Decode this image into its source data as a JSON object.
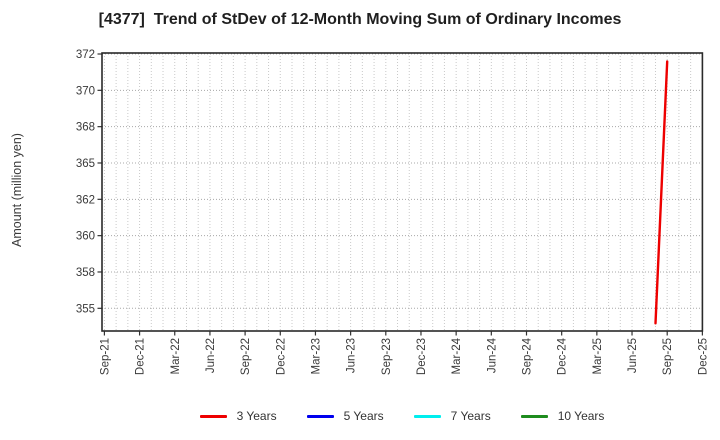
{
  "title": "[4377]  Trend of StDev of 12-Month Moving Sum of Ordinary Incomes",
  "y_axis": {
    "label": "Amount (million yen)",
    "ticks": [
      "372",
      "370",
      "368",
      "365",
      "362",
      "360",
      "358",
      "355"
    ]
  },
  "x_axis": {
    "ticks": [
      "Sep-21",
      "Dec-21",
      "Mar-22",
      "Jun-22",
      "Sep-22",
      "Dec-22",
      "Mar-23",
      "Jun-23",
      "Sep-23",
      "Dec-23",
      "Mar-24",
      "Jun-24",
      "Sep-24",
      "Dec-24",
      "Mar-25",
      "Jun-25",
      "Sep-25",
      "Dec-25"
    ]
  },
  "legend": [
    {
      "label": "3 Years",
      "color": "#ee0000"
    },
    {
      "label": "5 Years",
      "color": "#0000ee"
    },
    {
      "label": "7 Years",
      "color": "#00eeee"
    },
    {
      "label": "10 Years",
      "color": "#1e8c1e"
    }
  ],
  "chart_data": {
    "type": "line",
    "title": "[4377]  Trend of StDev of 12-Month Moving Sum of Ordinary Incomes",
    "xlabel": "",
    "ylabel": "Amount (million yen)",
    "x_tick_labels": [
      "Sep-21",
      "Dec-21",
      "Mar-22",
      "Jun-22",
      "Sep-22",
      "Dec-22",
      "Mar-23",
      "Jun-23",
      "Sep-23",
      "Dec-23",
      "Mar-24",
      "Jun-24",
      "Sep-24",
      "Dec-24",
      "Mar-25",
      "Jun-25",
      "Sep-25",
      "Dec-25"
    ],
    "x_minor_unit": "month",
    "x_range": [
      "Sep-21",
      "Dec-25"
    ],
    "y_tick_labels": [
      372,
      370,
      368,
      365,
      362,
      360,
      358,
      355
    ],
    "ylim": [
      353.4,
      372.1
    ],
    "grid": true,
    "legend_position": "bottom",
    "series": [
      {
        "name": "3 Years",
        "color": "#ee0000",
        "points": [
          {
            "x": "Aug-25",
            "y": 354.0
          },
          {
            "x": "Sep-25",
            "y": 371.5
          }
        ]
      },
      {
        "name": "5 Years",
        "color": "#0000ee",
        "points": []
      },
      {
        "name": "7 Years",
        "color": "#00eeee",
        "points": []
      },
      {
        "name": "10 Years",
        "color": "#1e8c1e",
        "points": []
      }
    ]
  }
}
